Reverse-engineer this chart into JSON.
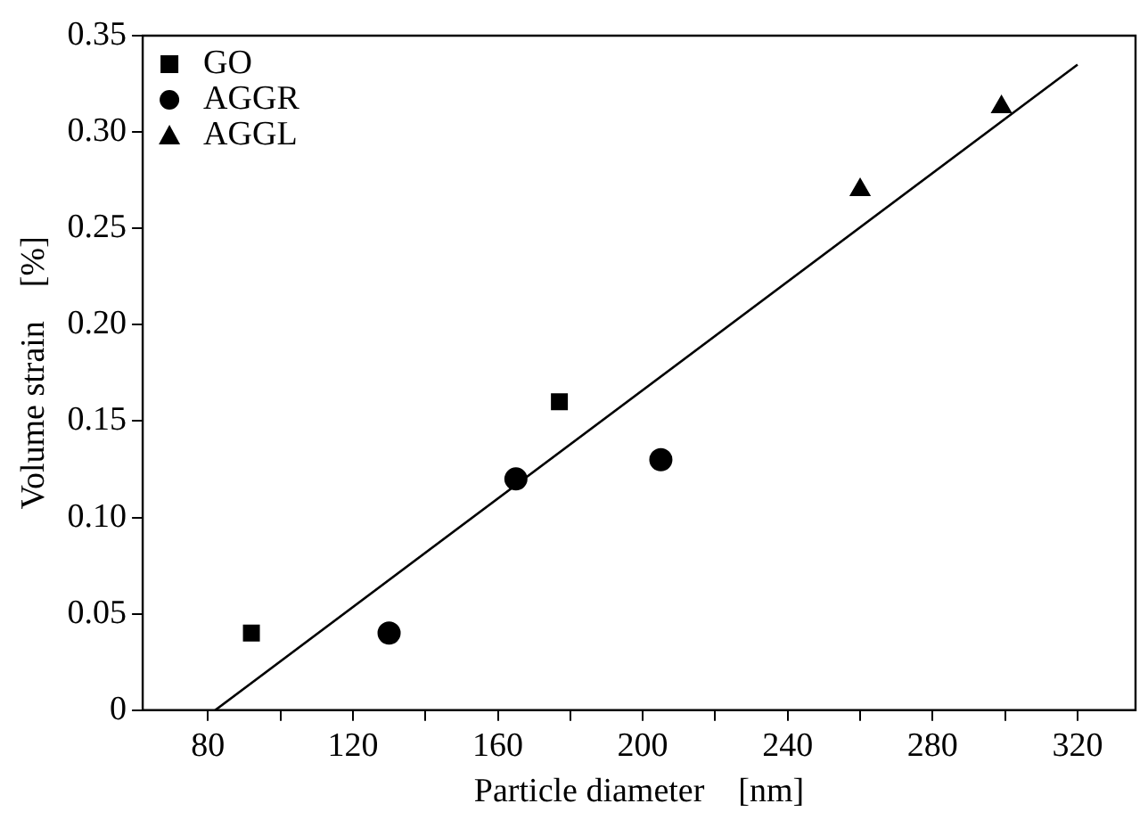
{
  "chart_data": {
    "type": "scatter",
    "xlabel": "Particle diameter    [nm]",
    "ylabel": "Volume strain    [%]",
    "xlim": [
      62,
      336
    ],
    "ylim": [
      0,
      0.35
    ],
    "xticks": [
      80,
      {
        "value": 100,
        "label": null
      },
      120,
      {
        "value": 140,
        "label": null
      },
      160,
      {
        "value": 180,
        "label": null
      },
      200,
      {
        "value": 220,
        "label": null
      },
      240,
      {
        "value": 260,
        "label": null
      },
      280,
      {
        "value": 300,
        "label": null
      },
      320
    ],
    "yticks": [
      0,
      0.05,
      {
        "value": 0.1,
        "label": "0.10"
      },
      0.15,
      {
        "value": 0.2,
        "label": "0.20"
      },
      0.25,
      {
        "value": 0.3,
        "label": "0.30"
      },
      0.35
    ],
    "grid": false,
    "legend": "top left",
    "series": [
      {
        "name": "GO",
        "color": "#000000",
        "marker": "square",
        "x": [
          92,
          177
        ],
        "values": [
          0.04,
          0.16
        ]
      },
      {
        "name": "AGGR",
        "color": "#000000",
        "marker": "circle",
        "x": [
          130,
          165,
          205
        ],
        "values": [
          0.04,
          0.12,
          0.13
        ]
      },
      {
        "name": "AGGL",
        "color": "#000000",
        "marker": "triangle",
        "x": [
          260,
          299
        ],
        "values": [
          0.27,
          0.313
        ]
      },
      {
        "type": "line",
        "color": "#000000",
        "marker": "none",
        "x": [
          82,
          320
        ],
        "values": [
          0,
          0.335
        ]
      }
    ]
  }
}
